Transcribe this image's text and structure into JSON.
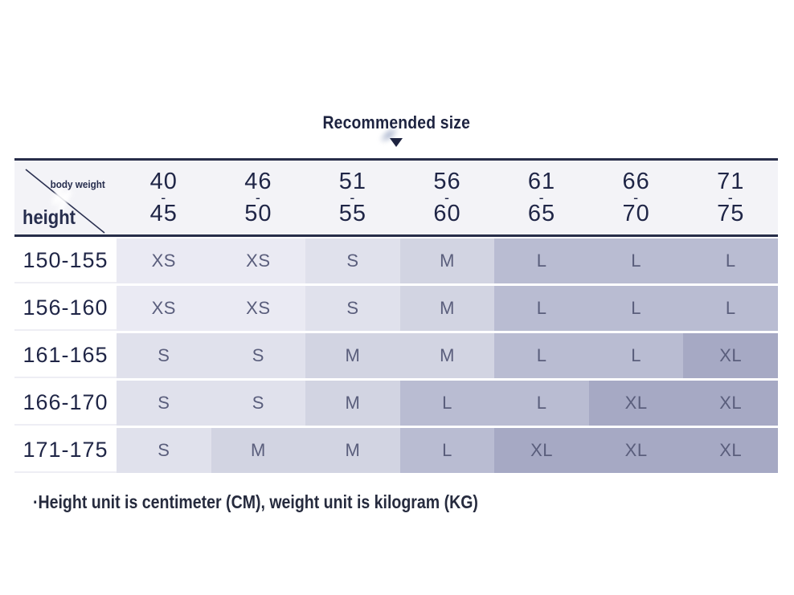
{
  "title": {
    "text": "Recommended size"
  },
  "table": {
    "corner": {
      "weight_label": "body weight",
      "height_label": "height"
    },
    "dash": "-",
    "columns": [
      {
        "from": "40",
        "to": "45"
      },
      {
        "from": "46",
        "to": "50"
      },
      {
        "from": "51",
        "to": "55"
      },
      {
        "from": "56",
        "to": "60"
      },
      {
        "from": "61",
        "to": "65"
      },
      {
        "from": "66",
        "to": "70"
      },
      {
        "from": "71",
        "to": "75"
      }
    ],
    "rows": [
      {
        "height": "150-155",
        "sizes": [
          "XS",
          "XS",
          "S",
          "M",
          "L",
          "L",
          "L"
        ]
      },
      {
        "height": "156-160",
        "sizes": [
          "XS",
          "XS",
          "S",
          "M",
          "L",
          "L",
          "L"
        ]
      },
      {
        "height": "161-165",
        "sizes": [
          "S",
          "S",
          "M",
          "M",
          "L",
          "L",
          "XL"
        ]
      },
      {
        "height": "166-170",
        "sizes": [
          "S",
          "S",
          "M",
          "L",
          "L",
          "XL",
          "XL"
        ]
      },
      {
        "height": "171-175",
        "sizes": [
          "S",
          "M",
          "M",
          "L",
          "XL",
          "XL",
          "XL"
        ]
      }
    ]
  },
  "note": {
    "text": "·Height unit is centimeter (CM), weight unit is kilogram (KG)"
  },
  "icons": {
    "pointer": "down-triangle-icon"
  },
  "colors": {
    "size_xs_bg": "#eaeaf3",
    "size_s_bg": "#e0e1ec",
    "size_m_bg": "#d2d4e2",
    "size_l_bg": "#b9bcd2",
    "size_xl_bg": "#a6a9c4",
    "header_bg": "#f3f3f7",
    "rule": "#272d49",
    "number_text": "#1f2546",
    "size_text": "#5a5e7c",
    "title_text": "#1d2340",
    "note_text": "#262b3e",
    "corner_text": "#272e4e"
  }
}
